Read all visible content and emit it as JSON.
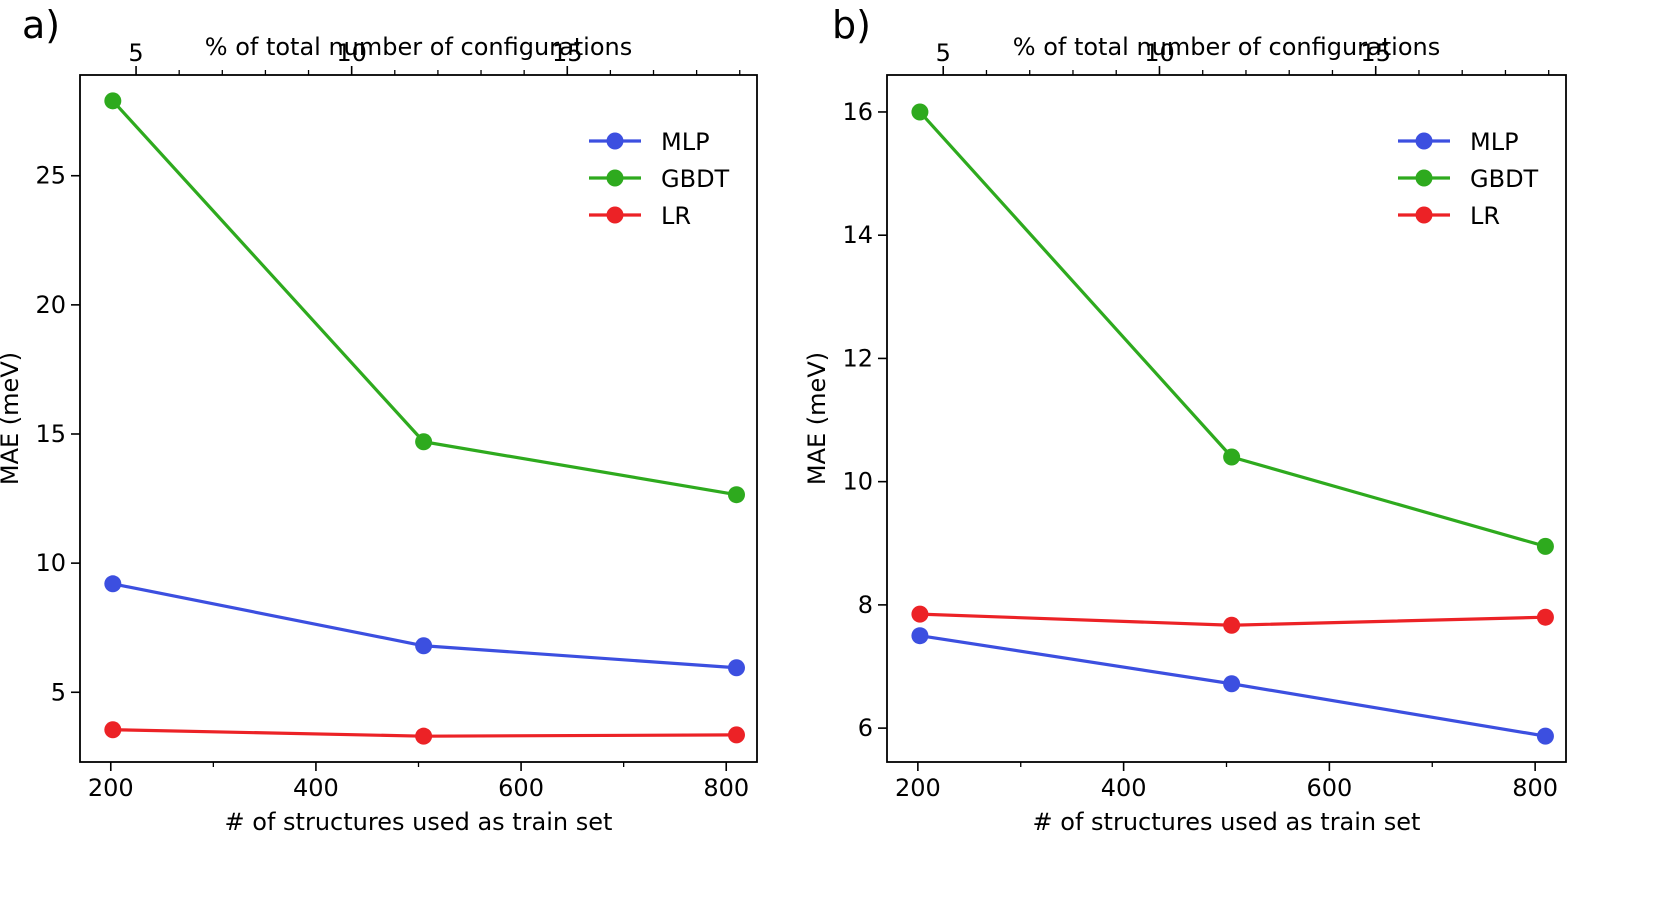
{
  "chart_data": [
    {
      "panel_label": "a)",
      "type": "line",
      "xlabel": "# of structures used as train set",
      "ylabel": "MAE (meV)",
      "top_xlabel": "% of total number of configurations",
      "xlim": [
        170,
        830
      ],
      "ylim": [
        2.3,
        28.9
      ],
      "x_ticks": [
        200,
        400,
        600,
        800
      ],
      "x_minor_ticks": [
        300,
        500,
        700
      ],
      "y_ticks": [
        5,
        10,
        15,
        20,
        25
      ],
      "top_x_lim": [
        3.7,
        19.4
      ],
      "top_x_ticks": [
        5,
        10,
        15
      ],
      "top_x_minor_ticks": [
        6,
        7,
        8,
        9,
        11,
        12,
        13,
        14,
        16,
        17,
        18,
        19
      ],
      "legend_position": "upper right",
      "grid": false,
      "x": [
        202,
        505,
        810
      ],
      "series": [
        {
          "name": "MLP",
          "color": "#3c4fe0",
          "values": [
            9.2,
            6.8,
            5.95
          ]
        },
        {
          "name": "GBDT",
          "color": "#2eaa1e",
          "values": [
            27.9,
            14.7,
            12.65
          ]
        },
        {
          "name": "LR",
          "color": "#ec2226",
          "values": [
            3.55,
            3.3,
            3.35
          ]
        }
      ]
    },
    {
      "panel_label": "b)",
      "type": "line",
      "xlabel": "# of structures used as train set",
      "ylabel": "MAE (meV)",
      "top_xlabel": "% of total number of configurations",
      "xlim": [
        170,
        830
      ],
      "ylim": [
        5.45,
        16.6
      ],
      "x_ticks": [
        200,
        400,
        600,
        800
      ],
      "x_minor_ticks": [
        300,
        500,
        700
      ],
      "y_ticks": [
        6,
        8,
        10,
        12,
        14,
        16
      ],
      "top_x_lim": [
        3.7,
        19.4
      ],
      "top_x_ticks": [
        5,
        10,
        15
      ],
      "top_x_minor_ticks": [
        6,
        7,
        8,
        9,
        11,
        12,
        13,
        14,
        16,
        17,
        18,
        19
      ],
      "legend_position": "upper right",
      "grid": false,
      "x": [
        202,
        505,
        810
      ],
      "series": [
        {
          "name": "MLP",
          "color": "#3c4fe0",
          "values": [
            7.5,
            6.72,
            5.87
          ]
        },
        {
          "name": "GBDT",
          "color": "#2eaa1e",
          "values": [
            16.0,
            10.4,
            8.95
          ]
        },
        {
          "name": "LR",
          "color": "#ec2226",
          "values": [
            7.85,
            7.67,
            7.8
          ]
        }
      ]
    }
  ]
}
